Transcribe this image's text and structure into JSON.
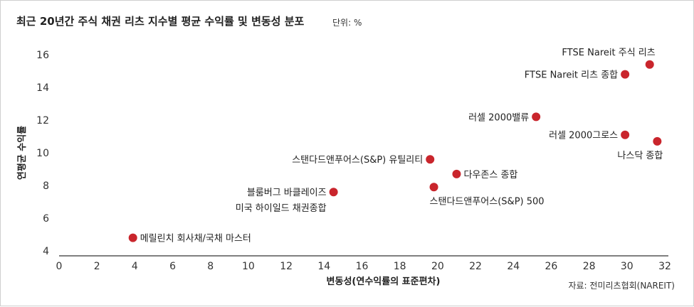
{
  "chart_data": {
    "type": "scatter",
    "title": "최근 20년간 주식 채권 리츠 지수별 평균 수익률 및 변동성 분포",
    "unit_note": "단위: %",
    "xlabel": "변동성(연수익률의 표준편차)",
    "ylabel": "연평균 수익률",
    "xlim": [
      0,
      32
    ],
    "ylim": [
      4,
      16
    ],
    "xticks": [
      0,
      2,
      4,
      6,
      8,
      10,
      12,
      14,
      16,
      18,
      20,
      22,
      24,
      26,
      28,
      30,
      32
    ],
    "yticks": [
      4,
      6,
      8,
      10,
      12,
      14,
      16
    ],
    "source": "자료: 전미리츠협회(NAREIT)",
    "point_color": "#c9252c",
    "points": [
      {
        "label": "FTSE Nareit 주식 리츠",
        "x": 31.2,
        "y": 15.4
      },
      {
        "label": "FTSE Nareit 리츠 종합",
        "x": 29.9,
        "y": 14.8
      },
      {
        "label": "러셀 2000밸류",
        "x": 25.2,
        "y": 12.2
      },
      {
        "label": "러셀 2000그로스",
        "x": 29.9,
        "y": 11.1
      },
      {
        "label": "나스닥 종합",
        "x": 31.6,
        "y": 10.7
      },
      {
        "label": "스탠다드앤푸어스(S&P) 유틸리티",
        "x": 19.6,
        "y": 9.6
      },
      {
        "label": "다우존스 종합",
        "x": 21.0,
        "y": 8.7
      },
      {
        "label": "스탠다드앤푸어스(S&P) 500",
        "x": 19.8,
        "y": 7.9
      },
      {
        "label": "블룸버그 바클레이즈\n미국 하이일드 채권종합",
        "x": 14.5,
        "y": 7.6
      },
      {
        "label": "메릴린치 회사채/국채 마스터",
        "x": 3.9,
        "y": 4.8
      }
    ]
  }
}
